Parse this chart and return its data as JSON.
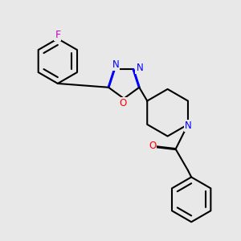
{
  "background_color": "#e8e8e8",
  "bond_color": "#000000",
  "bond_width": 1.5,
  "atom_colors": {
    "F": "#cc00cc",
    "N": "#0000ff",
    "O": "#ff0000",
    "C": "#000000"
  },
  "font_size": 8.5
}
